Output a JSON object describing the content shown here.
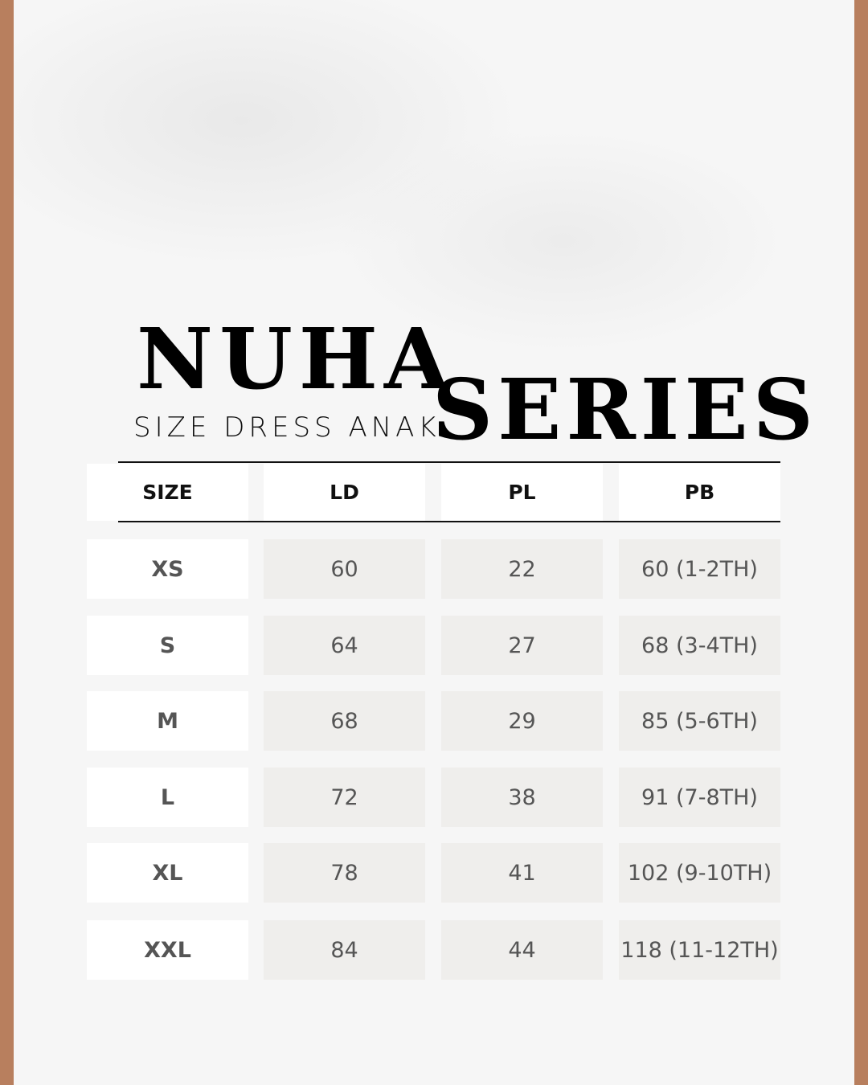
{
  "colors": {
    "border": "#b87f5e",
    "cell": "#efeeec",
    "text": "#555555"
  },
  "title": {
    "line1": "NUHA",
    "subtitle": "SIZE DRESS ANAK",
    "line2": "SERIES"
  },
  "table": {
    "headers": [
      "SIZE",
      "LD",
      "PL",
      "PB"
    ],
    "rows": [
      [
        "XS",
        "60",
        "22",
        "60 (1-2TH)"
      ],
      [
        "S",
        "64",
        "27",
        "68 (3-4TH)"
      ],
      [
        "M",
        "68",
        "29",
        "85 (5-6TH)"
      ],
      [
        "L",
        "72",
        "38",
        "91 (7-8TH)"
      ],
      [
        "XL",
        "78",
        "41",
        "102 (9-10TH)"
      ],
      [
        "XXL",
        "84",
        "44",
        "118 (11-12TH)"
      ]
    ]
  }
}
